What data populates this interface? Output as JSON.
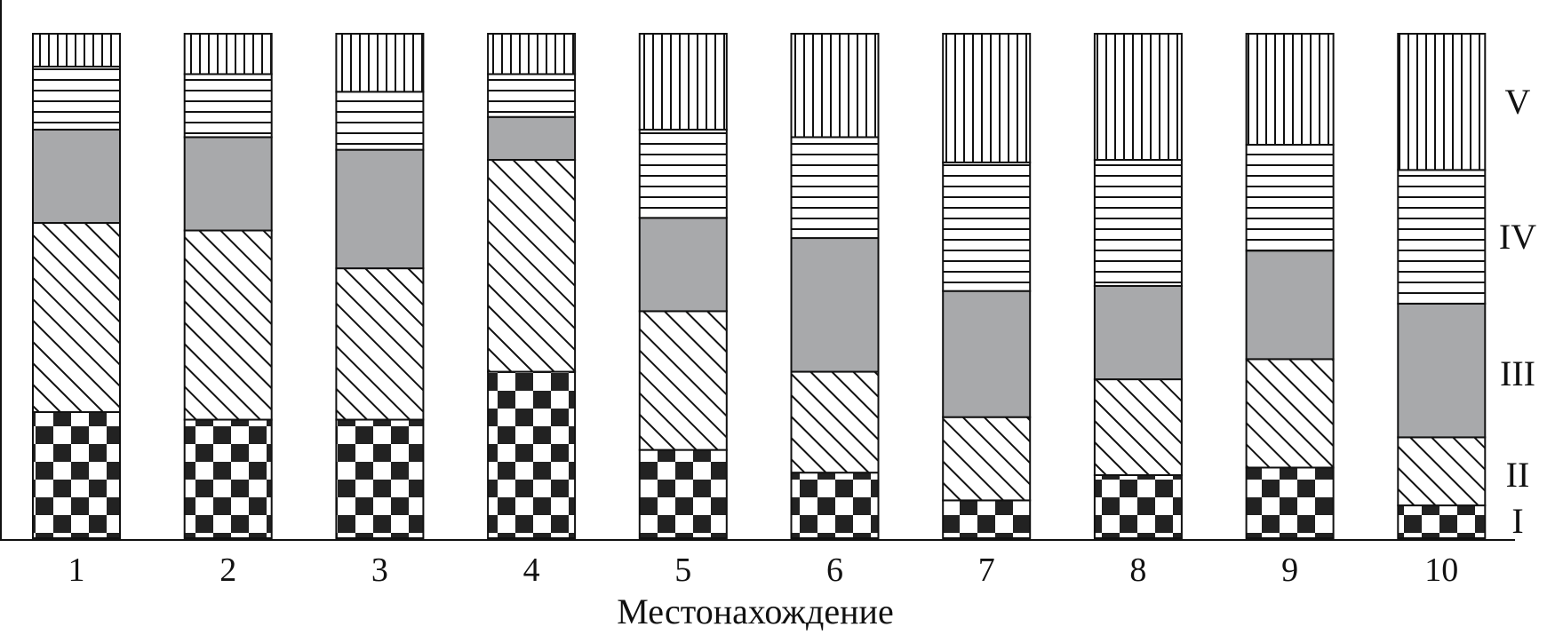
{
  "chart_data": {
    "type": "bar",
    "stacked": true,
    "categories": [
      "1",
      "2",
      "3",
      "4",
      "5",
      "6",
      "7",
      "8",
      "9",
      "10"
    ],
    "xlabel": "Местонахождение",
    "ylabel": "",
    "title": "",
    "ylim": [
      0,
      100
    ],
    "grid": false,
    "legend": "none",
    "series": [
      {
        "label": "I",
        "pattern": "checker-pattern",
        "values": [
          25,
          23.5,
          23.5,
          33,
          17.5,
          13,
          7.5,
          12.5,
          14,
          6.5
        ]
      },
      {
        "label": "II",
        "pattern": "diagonal-pattern",
        "values": [
          37.5,
          37.5,
          30,
          42,
          27.5,
          20,
          16.5,
          19,
          21.5,
          13.5
        ]
      },
      {
        "label": "III",
        "pattern": "solid-gray-fill",
        "values": [
          18.5,
          18.5,
          23.5,
          8.5,
          18.5,
          26.5,
          25,
          18.5,
          21.5,
          26.5
        ]
      },
      {
        "label": "IV",
        "pattern": "horizontal-pattern",
        "values": [
          12.5,
          12.5,
          11.5,
          8.5,
          17.5,
          20,
          25.5,
          25,
          21,
          26.5
        ]
      },
      {
        "label": "V",
        "pattern": "vertical-pattern",
        "values": [
          6.5,
          8,
          11.5,
          8,
          19,
          20.5,
          25.5,
          25,
          22,
          27
        ]
      }
    ],
    "colors": {
      "gray_fill": "#a8a9ab",
      "checker_dark": "#222222",
      "stroke": "#111111"
    }
  }
}
